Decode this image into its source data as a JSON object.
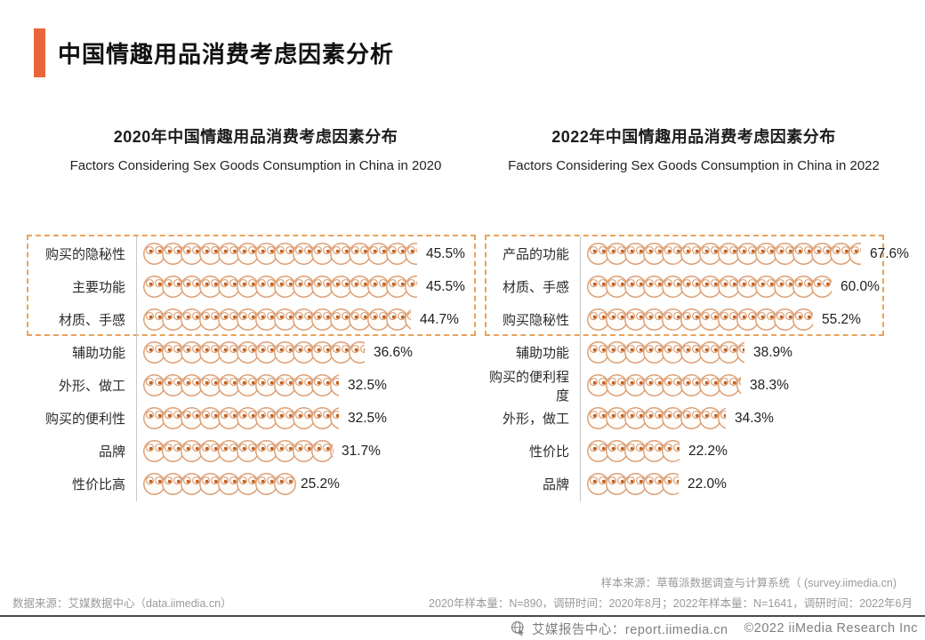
{
  "page": {
    "title": "中国情趣用品消费考虑因素分析"
  },
  "colors": {
    "accent": "#E9663C",
    "dashed_box": "#E8A35C",
    "icon_outline": "#DCA077",
    "icon_pupil": "#C2601F",
    "icon_fill": "#FFFDFA"
  },
  "chart_data": [
    {
      "type": "bar",
      "style": "pictogram",
      "title": "2020年中国情趣用品消费考虑因素分布",
      "subtitle": "Factors Considering Sex Goods Consumption in China in 2020",
      "categories": [
        "购买的隐秘性",
        "主要功能",
        "材质、手感",
        "辅助功能",
        "外形、做工",
        "购买的便利性",
        "品牌",
        "性价比高"
      ],
      "values": [
        45.5,
        45.5,
        44.7,
        36.6,
        32.5,
        32.5,
        31.7,
        25.2
      ],
      "display_values": [
        "45.5%",
        "45.5%",
        "44.7%",
        "36.6%",
        "32.5%",
        "32.5%",
        "31.7%",
        "25.2%"
      ],
      "unit": "%",
      "highlighted_top_rows": 3,
      "percent_per_icon": 3.125,
      "legend": "none",
      "grid": "off"
    },
    {
      "type": "bar",
      "style": "pictogram",
      "title": "2022年中国情趣用品消费考虑因素分布",
      "subtitle": "Factors Considering Sex Goods Consumption in China in 2022",
      "categories": [
        "产品的功能",
        "材质、手感",
        "购买隐秘性",
        "辅助功能",
        "购买的便利程度",
        "外形，做工",
        "性价比",
        "品牌"
      ],
      "values": [
        67.6,
        60.0,
        55.2,
        38.9,
        38.3,
        34.3,
        22.2,
        22.0
      ],
      "display_values": [
        "67.6%",
        "60.0%",
        "55.2%",
        "38.9%",
        "38.3%",
        "34.3%",
        "22.2%",
        "22.0%"
      ],
      "unit": "%",
      "highlighted_top_rows": 3,
      "percent_per_icon": 4.65,
      "legend": "none",
      "grid": "off"
    }
  ],
  "footnotes": {
    "sample_source": "样本来源：草莓派数据调查与计算系统（ (survey.iimedia.cn)",
    "data_source": "数据来源：艾媒数据中心（data.iimedia.cn）",
    "sample_info": "2020年样本量：N=890，调研时间：2020年8月；2022年样本量：N=1641，调研时间：2022年6月"
  },
  "footer": {
    "report_center": "艾媒报告中心：report.iimedia.cn",
    "copyright": "©2022  iiMedia Research  Inc"
  }
}
